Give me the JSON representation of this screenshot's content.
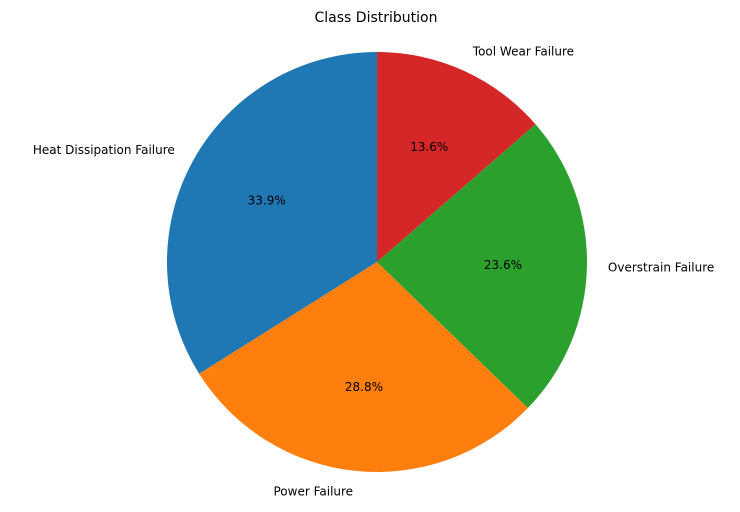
{
  "chart_data": {
    "type": "pie",
    "title": "Class Distribution",
    "start_angle_deg": 90,
    "direction": "counterclockwise",
    "slices": [
      {
        "label": "Heat Dissipation Failure",
        "value": 33.9,
        "pct_label": "33.9%",
        "color": "#1f77b4"
      },
      {
        "label": "Power Failure",
        "value": 28.8,
        "pct_label": "28.8%",
        "color": "#ff7f0e"
      },
      {
        "label": "Overstrain Failure",
        "value": 23.6,
        "pct_label": "23.6%",
        "color": "#2ca02c"
      },
      {
        "label": "Tool Wear Failure",
        "value": 13.6,
        "pct_label": "13.6%",
        "color": "#d62728"
      }
    ]
  }
}
